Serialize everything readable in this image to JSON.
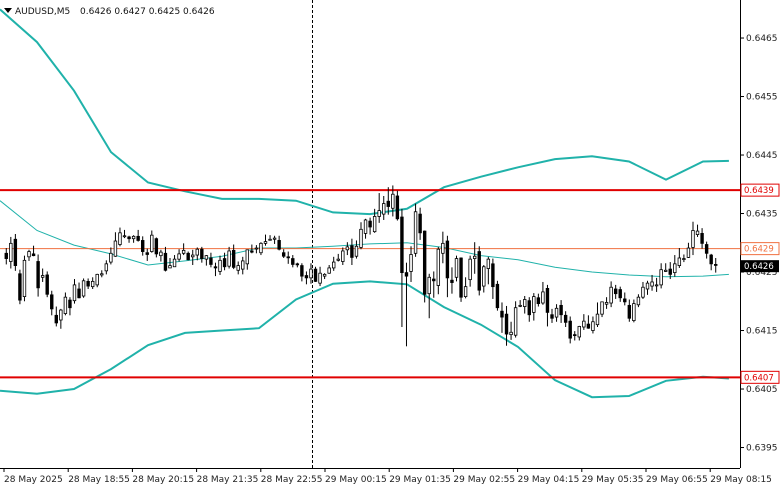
{
  "header": {
    "symbol": "AUDUSD,M5",
    "ohlc": "0.6426 0.6427 0.6425 0.6426"
  },
  "colors": {
    "candle": "#000000",
    "bands": "#20b2aa",
    "support_resistance": "#e00000",
    "pivot": "#f07040",
    "current_price_bg": "#000000"
  },
  "chart_data": {
    "type": "candlestick",
    "instrument": "AUDUSD",
    "timeframe": "M5",
    "ylim": [
      0.63915,
      0.64715
    ],
    "y_ticks": [
      "0.6465",
      "0.6455",
      "0.6445",
      "0.6435",
      "0.6425",
      "0.6415",
      "0.6405",
      "0.6395"
    ],
    "x_ticks": [
      "28 May 2025",
      "28 May 18:55",
      "28 May 20:15",
      "28 May 21:35",
      "28 May 22:55",
      "29 May 00:15",
      "29 May 01:35",
      "29 May 02:55",
      "29 May 04:15",
      "29 May 05:35",
      "29 May 06:55",
      "29 May 08:15"
    ],
    "horizontal_levels": [
      {
        "label": "0.6439",
        "value": 0.6439,
        "color": "#e00000"
      },
      {
        "label": "0.6429",
        "value": 0.6429,
        "color": "#f07040"
      },
      {
        "label": "0.6407",
        "value": 0.6407,
        "color": "#e00000"
      }
    ],
    "current_price": {
      "label": "0.6426",
      "value": 0.6426
    },
    "indicators": [
      "Bollinger Bands"
    ],
    "candles": [
      [
        0.64282,
        0.64273,
        0.64291,
        0.64263
      ],
      [
        0.64268,
        0.64299,
        0.6431,
        0.64256
      ],
      [
        0.64306,
        0.64261,
        0.64315,
        0.64252
      ],
      [
        0.64247,
        0.64202,
        0.64254,
        0.64195
      ],
      [
        0.64208,
        0.6427,
        0.64278,
        0.642
      ],
      [
        0.64276,
        0.64285,
        0.64288,
        0.64269
      ],
      [
        0.64281,
        0.64278,
        0.64295,
        0.64277
      ],
      [
        0.64268,
        0.64223,
        0.6428,
        0.64208
      ],
      [
        0.64241,
        0.64244,
        0.64256,
        0.64233
      ],
      [
        0.64245,
        0.64212,
        0.64251,
        0.64207
      ],
      [
        0.64211,
        0.64187,
        0.64218,
        0.64176
      ],
      [
        0.64176,
        0.64163,
        0.64191,
        0.64157
      ],
      [
        0.64168,
        0.64185,
        0.64187,
        0.64153
      ],
      [
        0.64179,
        0.64207,
        0.64215,
        0.64176
      ],
      [
        0.64202,
        0.64189,
        0.64207,
        0.64176
      ],
      [
        0.64201,
        0.64228,
        0.64238,
        0.64196
      ],
      [
        0.64221,
        0.64206,
        0.64232,
        0.64205
      ],
      [
        0.64209,
        0.64235,
        0.64239,
        0.64206
      ],
      [
        0.64234,
        0.64226,
        0.64239,
        0.64221
      ],
      [
        0.64225,
        0.64234,
        0.64241,
        0.64221
      ],
      [
        0.64228,
        0.64246,
        0.64247,
        0.64224
      ],
      [
        0.64245,
        0.64247,
        0.64253,
        0.64241
      ],
      [
        0.64252,
        0.64264,
        0.6427,
        0.64246
      ],
      [
        0.64267,
        0.64282,
        0.64292,
        0.64263
      ],
      [
        0.64277,
        0.64303,
        0.64318,
        0.64276
      ],
      [
        0.64297,
        0.64317,
        0.64326,
        0.64294
      ],
      [
        0.64312,
        0.64312,
        0.64322,
        0.64308
      ],
      [
        0.6431,
        0.64307,
        0.64312,
        0.643
      ],
      [
        0.64307,
        0.64311,
        0.64313,
        0.643
      ],
      [
        0.64311,
        0.64304,
        0.64322,
        0.64302
      ],
      [
        0.64304,
        0.64285,
        0.64311,
        0.64278
      ],
      [
        0.64283,
        0.6428,
        0.6429,
        0.64269
      ],
      [
        0.64285,
        0.64313,
        0.64321,
        0.64283
      ],
      [
        0.64307,
        0.64281,
        0.64309,
        0.64275
      ],
      [
        0.64278,
        0.64284,
        0.64288,
        0.64268
      ],
      [
        0.64282,
        0.64253,
        0.64293,
        0.64251
      ],
      [
        0.64257,
        0.64261,
        0.64274,
        0.64257
      ],
      [
        0.64259,
        0.64272,
        0.64279,
        0.64259
      ],
      [
        0.64272,
        0.64281,
        0.64289,
        0.64268
      ],
      [
        0.64282,
        0.64287,
        0.64299,
        0.64279
      ],
      [
        0.64282,
        0.64271,
        0.64285,
        0.6427
      ],
      [
        0.64276,
        0.64279,
        0.64288,
        0.64262
      ],
      [
        0.64279,
        0.64289,
        0.64292,
        0.6427
      ],
      [
        0.64289,
        0.64273,
        0.64293,
        0.64266
      ],
      [
        0.64272,
        0.64278,
        0.64279,
        0.64261
      ],
      [
        0.64274,
        0.64263,
        0.64283,
        0.64258
      ],
      [
        0.64259,
        0.64257,
        0.64266,
        0.64243
      ],
      [
        0.64251,
        0.6427,
        0.64278,
        0.64245
      ],
      [
        0.64273,
        0.64259,
        0.64283,
        0.64253
      ],
      [
        0.6426,
        0.64286,
        0.64293,
        0.64256
      ],
      [
        0.64287,
        0.64258,
        0.64297,
        0.64255
      ],
      [
        0.64253,
        0.64261,
        0.64268,
        0.64246
      ],
      [
        0.64255,
        0.64269,
        0.64276,
        0.64246
      ],
      [
        0.64264,
        0.64288,
        0.64288,
        0.64254
      ],
      [
        0.64286,
        0.64284,
        0.64297,
        0.64282
      ],
      [
        0.6429,
        0.64291,
        0.64296,
        0.64282
      ],
      [
        0.64283,
        0.64299,
        0.64301,
        0.64279
      ],
      [
        0.64299,
        0.64302,
        0.64314,
        0.64295
      ],
      [
        0.64305,
        0.64306,
        0.64313,
        0.64305
      ],
      [
        0.64306,
        0.64308,
        0.64312,
        0.64298
      ],
      [
        0.64304,
        0.64289,
        0.64312,
        0.64287
      ],
      [
        0.64283,
        0.64277,
        0.64289,
        0.64274
      ],
      [
        0.64276,
        0.64275,
        0.64285,
        0.64264
      ],
      [
        0.64273,
        0.64263,
        0.64279,
        0.64258
      ],
      [
        0.64264,
        0.64263,
        0.64266,
        0.64258
      ],
      [
        0.64261,
        0.64243,
        0.64265,
        0.64234
      ],
      [
        0.64244,
        0.6424,
        0.64251,
        0.64229
      ],
      [
        0.6424,
        0.64255,
        0.64265,
        0.6423
      ],
      [
        0.64255,
        0.64234,
        0.64259,
        0.64233
      ],
      [
        0.64231,
        0.64248,
        0.64259,
        0.64226
      ],
      [
        0.64243,
        0.64246,
        0.64248,
        0.64238
      ],
      [
        0.64248,
        0.64257,
        0.64262,
        0.64247
      ],
      [
        0.64257,
        0.64267,
        0.64276,
        0.64252
      ],
      [
        0.6427,
        0.64272,
        0.64281,
        0.64268
      ],
      [
        0.64268,
        0.64286,
        0.64292,
        0.64262
      ],
      [
        0.64288,
        0.64293,
        0.64301,
        0.64279
      ],
      [
        0.64295,
        0.64275,
        0.64307,
        0.64262
      ],
      [
        0.64277,
        0.64294,
        0.64304,
        0.64273
      ],
      [
        0.64292,
        0.64323,
        0.64335,
        0.64289
      ],
      [
        0.64316,
        0.64339,
        0.64341,
        0.64307
      ],
      [
        0.64337,
        0.64327,
        0.64343,
        0.64314
      ],
      [
        0.64319,
        0.64345,
        0.64358,
        0.64317
      ],
      [
        0.64345,
        0.64355,
        0.64385,
        0.64334
      ],
      [
        0.64349,
        0.64367,
        0.6438,
        0.64339
      ],
      [
        0.64371,
        0.64362,
        0.64395,
        0.64348
      ],
      [
        0.64359,
        0.64383,
        0.64398,
        0.64345
      ],
      [
        0.6438,
        0.64341,
        0.64389,
        0.64338
      ],
      [
        0.64344,
        0.64249,
        0.64358,
        0.64156
      ],
      [
        0.64249,
        0.64243,
        0.64266,
        0.64123
      ],
      [
        0.64251,
        0.6428,
        0.64294,
        0.64233
      ],
      [
        0.64282,
        0.64353,
        0.64367,
        0.64276
      ],
      [
        0.64349,
        0.64317,
        0.6436,
        0.64305
      ],
      [
        0.6432,
        0.64212,
        0.64321,
        0.64198
      ],
      [
        0.64213,
        0.64241,
        0.64247,
        0.64171
      ],
      [
        0.64238,
        0.64235,
        0.64251,
        0.64206
      ],
      [
        0.64227,
        0.64289,
        0.64293,
        0.64212
      ],
      [
        0.64282,
        0.64299,
        0.64319,
        0.64265
      ],
      [
        0.64303,
        0.6424,
        0.64312,
        0.64207
      ],
      [
        0.64236,
        0.64232,
        0.64258,
        0.64213
      ],
      [
        0.64241,
        0.64273,
        0.64278,
        0.64234
      ],
      [
        0.64274,
        0.64207,
        0.64275,
        0.64199
      ],
      [
        0.64208,
        0.64225,
        0.64241,
        0.64205
      ],
      [
        0.64237,
        0.64272,
        0.64278,
        0.64225
      ],
      [
        0.64273,
        0.64277,
        0.64301,
        0.64247
      ],
      [
        0.64285,
        0.64219,
        0.64294,
        0.6421
      ],
      [
        0.64226,
        0.64259,
        0.64262,
        0.64215
      ],
      [
        0.64256,
        0.64272,
        0.64276,
        0.64229
      ],
      [
        0.64264,
        0.64225,
        0.64273,
        0.64204
      ],
      [
        0.64229,
        0.64189,
        0.64235,
        0.64184
      ],
      [
        0.64183,
        0.64173,
        0.64198,
        0.64146
      ],
      [
        0.64178,
        0.64144,
        0.64192,
        0.64124
      ],
      [
        0.64143,
        0.64147,
        0.64165,
        0.64134
      ],
      [
        0.64142,
        0.64189,
        0.642,
        0.64138
      ],
      [
        0.64193,
        0.64193,
        0.64202,
        0.6419
      ],
      [
        0.64191,
        0.64203,
        0.64209,
        0.64179
      ],
      [
        0.64201,
        0.64177,
        0.64207,
        0.64165
      ],
      [
        0.64181,
        0.64208,
        0.64214,
        0.64167
      ],
      [
        0.64206,
        0.64196,
        0.64213,
        0.64191
      ],
      [
        0.64197,
        0.64216,
        0.64233,
        0.64194
      ],
      [
        0.64222,
        0.64181,
        0.64228,
        0.64157
      ],
      [
        0.64177,
        0.64171,
        0.64187,
        0.64163
      ],
      [
        0.64173,
        0.64188,
        0.64195,
        0.64165
      ],
      [
        0.64193,
        0.64177,
        0.64202,
        0.64163
      ],
      [
        0.64176,
        0.64164,
        0.64183,
        0.64156
      ],
      [
        0.64166,
        0.64137,
        0.64174,
        0.64128
      ],
      [
        0.64143,
        0.64142,
        0.64149,
        0.64133
      ],
      [
        0.64139,
        0.64157,
        0.64158,
        0.64133
      ],
      [
        0.64156,
        0.64166,
        0.64178,
        0.64151
      ],
      [
        0.64161,
        0.64154,
        0.64176,
        0.64153
      ],
      [
        0.6415,
        0.64165,
        0.64174,
        0.64145
      ],
      [
        0.6416,
        0.64178,
        0.64198,
        0.64156
      ],
      [
        0.64178,
        0.64199,
        0.64199,
        0.64173
      ],
      [
        0.64195,
        0.64198,
        0.64207,
        0.64187
      ],
      [
        0.64197,
        0.64224,
        0.64234,
        0.6419
      ],
      [
        0.64221,
        0.64213,
        0.64228,
        0.64204
      ],
      [
        0.6422,
        0.64206,
        0.64225,
        0.64199
      ],
      [
        0.64204,
        0.64199,
        0.64215,
        0.64193
      ],
      [
        0.64193,
        0.64171,
        0.64203,
        0.64165
      ],
      [
        0.64167,
        0.64196,
        0.64203,
        0.64164
      ],
      [
        0.64194,
        0.64207,
        0.64212,
        0.6419
      ],
      [
        0.64207,
        0.64224,
        0.64233,
        0.64204
      ],
      [
        0.64221,
        0.64231,
        0.64235,
        0.64211
      ],
      [
        0.64226,
        0.64233,
        0.64245,
        0.64218
      ],
      [
        0.64228,
        0.64228,
        0.6424,
        0.64216
      ],
      [
        0.64228,
        0.64254,
        0.64265,
        0.64222
      ],
      [
        0.64251,
        0.64253,
        0.64265,
        0.6425
      ],
      [
        0.64255,
        0.64246,
        0.64267,
        0.64238
      ],
      [
        0.64249,
        0.64264,
        0.64279,
        0.64242
      ],
      [
        0.64261,
        0.64274,
        0.64291,
        0.64257
      ],
      [
        0.64272,
        0.64273,
        0.6428,
        0.64267
      ],
      [
        0.64275,
        0.64291,
        0.643,
        0.64274
      ],
      [
        0.64292,
        0.64321,
        0.64336,
        0.64279
      ],
      [
        0.64314,
        0.6432,
        0.64331,
        0.6431
      ],
      [
        0.64316,
        0.64299,
        0.64325,
        0.6429
      ],
      [
        0.64297,
        0.64282,
        0.64302,
        0.64273
      ],
      [
        0.64279,
        0.64264,
        0.64281,
        0.64253
      ],
      [
        0.64263,
        0.64262,
        0.64274,
        0.64249
      ]
    ],
    "bollinger_upper": [
      [
        0,
        0.64699
      ],
      [
        0.05,
        0.64643
      ],
      [
        0.1,
        0.6456
      ],
      [
        0.15,
        0.64455
      ],
      [
        0.2,
        0.64403
      ],
      [
        0.25,
        0.64388
      ],
      [
        0.3,
        0.64375
      ],
      [
        0.35,
        0.64375
      ],
      [
        0.4,
        0.64372
      ],
      [
        0.45,
        0.64352
      ],
      [
        0.5,
        0.64349
      ],
      [
        0.55,
        0.64358
      ],
      [
        0.6,
        0.64395
      ],
      [
        0.65,
        0.64413
      ],
      [
        0.7,
        0.64429
      ],
      [
        0.75,
        0.64443
      ],
      [
        0.8,
        0.64448
      ],
      [
        0.85,
        0.64439
      ],
      [
        0.9,
        0.64408
      ],
      [
        0.95,
        0.64439
      ],
      [
        0.985,
        0.6444
      ]
    ],
    "bollinger_middle": [
      [
        0,
        0.64372
      ],
      [
        0.05,
        0.64321
      ],
      [
        0.1,
        0.64296
      ],
      [
        0.15,
        0.64281
      ],
      [
        0.2,
        0.64262
      ],
      [
        0.25,
        0.64269
      ],
      [
        0.3,
        0.64277
      ],
      [
        0.35,
        0.64291
      ],
      [
        0.4,
        0.64291
      ],
      [
        0.45,
        0.64294
      ],
      [
        0.5,
        0.64298
      ],
      [
        0.55,
        0.643
      ],
      [
        0.6,
        0.64292
      ],
      [
        0.65,
        0.64278
      ],
      [
        0.7,
        0.64271
      ],
      [
        0.75,
        0.64258
      ],
      [
        0.8,
        0.6425
      ],
      [
        0.85,
        0.64245
      ],
      [
        0.9,
        0.64242
      ],
      [
        0.95,
        0.64243
      ],
      [
        0.985,
        0.64246
      ]
    ],
    "bollinger_lower": [
      [
        0,
        0.64047
      ],
      [
        0.05,
        0.64042
      ],
      [
        0.1,
        0.6405
      ],
      [
        0.15,
        0.64084
      ],
      [
        0.2,
        0.64125
      ],
      [
        0.25,
        0.64146
      ],
      [
        0.3,
        0.6415
      ],
      [
        0.35,
        0.64154
      ],
      [
        0.4,
        0.64203
      ],
      [
        0.45,
        0.6423
      ],
      [
        0.5,
        0.64234
      ],
      [
        0.55,
        0.64229
      ],
      [
        0.6,
        0.6419
      ],
      [
        0.65,
        0.6416
      ],
      [
        0.7,
        0.64122
      ],
      [
        0.75,
        0.64065
      ],
      [
        0.8,
        0.64036
      ],
      [
        0.85,
        0.64038
      ],
      [
        0.9,
        0.64064
      ],
      [
        0.95,
        0.64071
      ],
      [
        0.985,
        0.64068
      ]
    ],
    "cursor_marker": "dashed vertical line near 28 May 22:55"
  }
}
